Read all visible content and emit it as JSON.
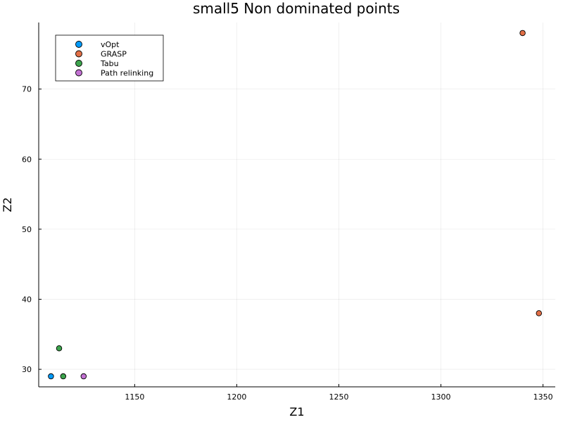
{
  "chart_data": {
    "type": "scatter",
    "title": "small5 Non dominated points",
    "xlabel": "Z1",
    "ylabel": "Z2",
    "xlim": [
      1103,
      1356
    ],
    "ylim": [
      27.5,
      79.5
    ],
    "xticks": [
      1150,
      1200,
      1250,
      1300,
      1350
    ],
    "yticks": [
      30,
      40,
      50,
      60,
      70
    ],
    "grid": true,
    "legend_position": "top-left",
    "series": [
      {
        "name": "vOpt",
        "color": "#009af9",
        "points": [
          [
            1109,
            29
          ]
        ]
      },
      {
        "name": "GRASP",
        "color": "#e26f46",
        "points": [
          [
            1340,
            78
          ],
          [
            1348,
            38
          ]
        ]
      },
      {
        "name": "Tabu",
        "color": "#3da44d",
        "points": [
          [
            1113,
            33
          ],
          [
            1115,
            29
          ]
        ]
      },
      {
        "name": "Path relinking",
        "color": "#c271d2",
        "points": [
          [
            1125,
            29
          ]
        ]
      }
    ]
  }
}
